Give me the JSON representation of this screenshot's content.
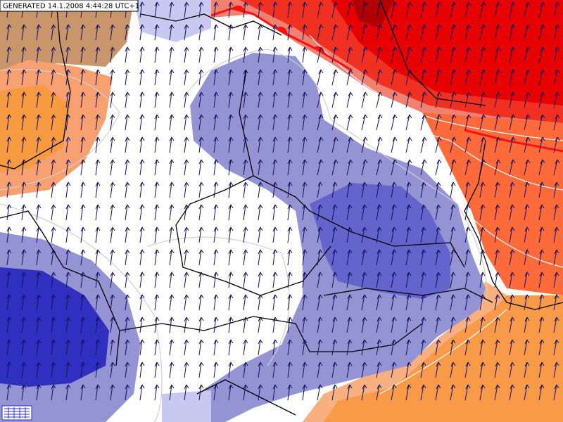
{
  "header": {
    "timestamp": "GENERATED 14.1.2008 4:44:28 UTC+1"
  }
}
